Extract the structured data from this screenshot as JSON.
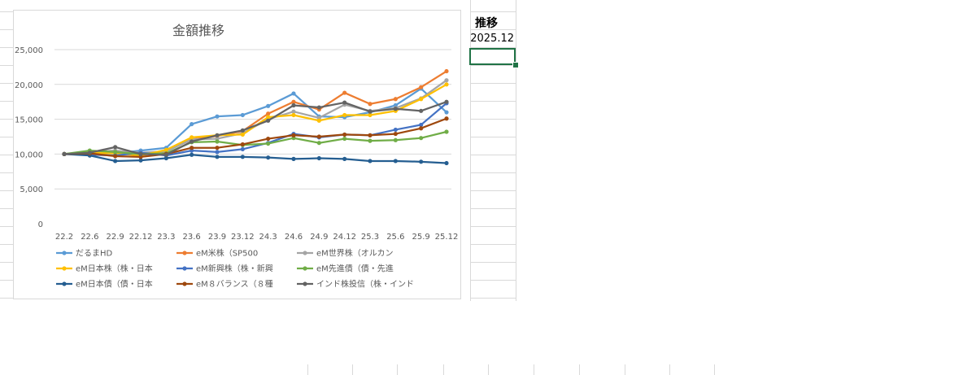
{
  "spreadsheet": {
    "header_cell": "推移",
    "value_cell": "2025.12",
    "selection_color": "#217346"
  },
  "chart_data": {
    "type": "line",
    "title": "金額推移",
    "xlabel": "",
    "ylabel": "",
    "ylim": [
      0,
      25000
    ],
    "yticks": [
      "0",
      "5,000",
      "10,000",
      "15,000",
      "20,000",
      "25,000"
    ],
    "grid": true,
    "legend_position": "bottom",
    "categories": [
      "22.2",
      "22.6",
      "22.9",
      "22.12",
      "23.3",
      "23.6",
      "23.9",
      "23.12",
      "24.3",
      "24.6",
      "24.9",
      "24.12",
      "25.3",
      "25.6",
      "25.9",
      "25.12"
    ],
    "series": [
      {
        "name": "だるまHD",
        "color": "#5b9bd5",
        "values": [
          10000,
          10150,
          10100,
          10500,
          10900,
          14300,
          15400,
          15600,
          16900,
          18700,
          15400,
          15300,
          16000,
          17000,
          19400,
          16000
        ]
      },
      {
        "name": "eM米株（SP500",
        "color": "#ed7d31",
        "values": [
          10000,
          10200,
          10300,
          10000,
          10400,
          12100,
          12600,
          13300,
          15800,
          17500,
          16400,
          18800,
          17200,
          17900,
          19600,
          21900
        ]
      },
      {
        "name": "eM世界株（オルカン",
        "color": "#a5a5a5",
        "values": [
          10000,
          10300,
          10500,
          10200,
          10400,
          12100,
          12200,
          13000,
          15000,
          16100,
          15200,
          17100,
          16200,
          16600,
          18000,
          20600
        ]
      },
      {
        "name": "eM日本株（株・日本",
        "color": "#ffc000",
        "values": [
          10000,
          10200,
          10100,
          9800,
          10600,
          12400,
          12700,
          12800,
          15300,
          15600,
          14800,
          15600,
          15600,
          16200,
          17900,
          20000
        ]
      },
      {
        "name": "eM新興株（株・新興",
        "color": "#4472c4",
        "values": [
          10000,
          9900,
          9800,
          10200,
          9800,
          10500,
          10300,
          10700,
          11600,
          12900,
          12400,
          12800,
          12700,
          13500,
          14200,
          17300
        ]
      },
      {
        "name": "eM先進債（債・先進",
        "color": "#70ad47",
        "values": [
          10000,
          10500,
          10300,
          10000,
          10100,
          11700,
          11800,
          11300,
          11500,
          12300,
          11600,
          12200,
          11900,
          12000,
          12300,
          13200
        ]
      },
      {
        "name": "eM日本債（債・日本",
        "color": "#255e91",
        "values": [
          10000,
          9800,
          9000,
          9100,
          9400,
          9900,
          9600,
          9600,
          9500,
          9300,
          9400,
          9300,
          9000,
          9000,
          8900,
          8700
        ]
      },
      {
        "name": "eM８バランス（８種",
        "color": "#9e480e",
        "values": [
          10000,
          10100,
          9700,
          9600,
          10000,
          10900,
          10900,
          11400,
          12200,
          12700,
          12500,
          12800,
          12700,
          12900,
          13700,
          15100
        ]
      },
      {
        "name": "インド株投信（株・インド",
        "color": "#636363",
        "values": [
          10000,
          10200,
          11000,
          10000,
          9900,
          11800,
          12700,
          13400,
          14800,
          17000,
          16700,
          17400,
          16100,
          16500,
          16200,
          17500
        ]
      }
    ]
  }
}
